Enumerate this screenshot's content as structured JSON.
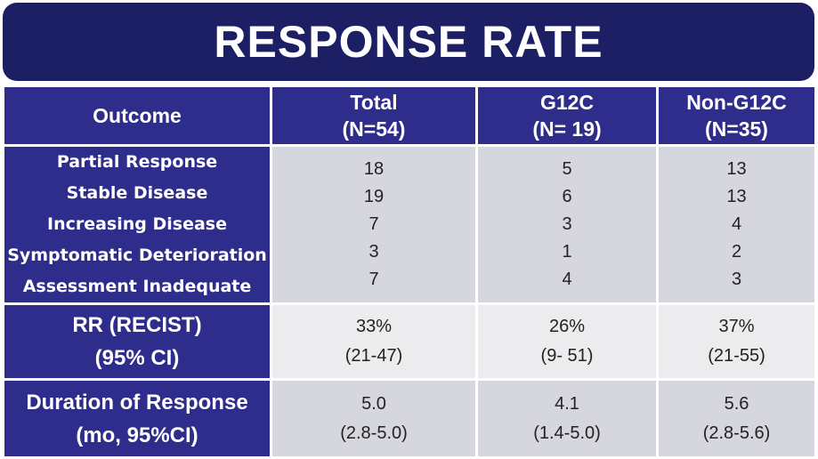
{
  "title": "RESPONSE RATE",
  "headers": {
    "outcome": "Outcome",
    "total": [
      "Total",
      "(N=54)"
    ],
    "g12c": [
      "G12C",
      "(N= 19)"
    ],
    "non_g12c": [
      "Non-G12C",
      "(N=35)"
    ]
  },
  "outcomes": {
    "labels": [
      "Partial Response",
      "Stable Disease",
      "Increasing Disease",
      "Symptomatic Deterioration",
      "Assessment Inadequate"
    ],
    "total": [
      "18",
      "19",
      "7",
      "3",
      "7"
    ],
    "g12c": [
      "5",
      "6",
      "3",
      "1",
      "4"
    ],
    "non_g12c": [
      "13",
      "13",
      "4",
      "2",
      "3"
    ]
  },
  "rr": {
    "label": [
      "RR (RECIST)",
      "(95% CI)"
    ],
    "total": [
      "33%",
      "(21-47)"
    ],
    "g12c": [
      "26%",
      "(9- 51)"
    ],
    "non_g12c": [
      "37%",
      "(21-55)"
    ]
  },
  "duration": {
    "label": [
      "Duration of Response",
      "(mo, 95%CI)"
    ],
    "total": [
      "5.0",
      "(2.8-5.0)"
    ],
    "g12c": [
      "4.1",
      "(1.4-5.0)"
    ],
    "non_g12c": [
      "5.6",
      "(2.8-5.6)"
    ]
  }
}
